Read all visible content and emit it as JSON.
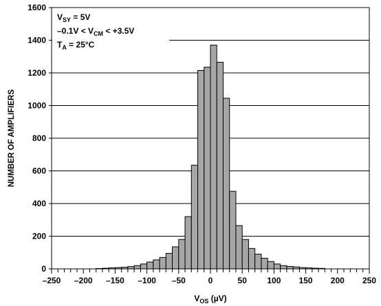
{
  "chart_data": {
    "type": "bar",
    "xlabel": "V",
    "xlabel_sub": "OS",
    "xlabel_unit": " (µV)",
    "ylabel": "NUMBER OF AMPLIFIERS",
    "xlim": [
      -250,
      250
    ],
    "ylim": [
      0,
      1600
    ],
    "x_ticks": [
      -250,
      -200,
      -150,
      -100,
      -50,
      0,
      50,
      100,
      150,
      200,
      250
    ],
    "x_tick_labels": [
      "–250",
      "–200",
      "–150",
      "–100",
      "–50",
      "0",
      "50",
      "100",
      "150",
      "200",
      "250"
    ],
    "y_ticks": [
      0,
      200,
      400,
      600,
      800,
      1000,
      1200,
      1400,
      1600
    ],
    "y_tick_labels": [
      "0",
      "200",
      "400",
      "600",
      "800",
      "1000",
      "1200",
      "1400",
      "1600"
    ],
    "grid": "horizontal",
    "bin_width": 10,
    "bins": [
      {
        "center": -175,
        "value": 2
      },
      {
        "center": -165,
        "value": 4
      },
      {
        "center": -155,
        "value": 6
      },
      {
        "center": -145,
        "value": 8
      },
      {
        "center": -135,
        "value": 10
      },
      {
        "center": -125,
        "value": 14
      },
      {
        "center": -115,
        "value": 20
      },
      {
        "center": -105,
        "value": 30
      },
      {
        "center": -95,
        "value": 42
      },
      {
        "center": -85,
        "value": 55
      },
      {
        "center": -75,
        "value": 70
      },
      {
        "center": -65,
        "value": 95
      },
      {
        "center": -55,
        "value": 135
      },
      {
        "center": -45,
        "value": 180
      },
      {
        "center": -35,
        "value": 320
      },
      {
        "center": -25,
        "value": 635
      },
      {
        "center": -15,
        "value": 1215
      },
      {
        "center": -5,
        "value": 1235
      },
      {
        "center": 5,
        "value": 1370
      },
      {
        "center": 15,
        "value": 1265
      },
      {
        "center": 25,
        "value": 1045
      },
      {
        "center": 35,
        "value": 475
      },
      {
        "center": 45,
        "value": 265
      },
      {
        "center": 55,
        "value": 180
      },
      {
        "center": 65,
        "value": 125
      },
      {
        "center": 75,
        "value": 90
      },
      {
        "center": 85,
        "value": 65
      },
      {
        "center": 95,
        "value": 45
      },
      {
        "center": 105,
        "value": 30
      },
      {
        "center": 115,
        "value": 20
      },
      {
        "center": 125,
        "value": 15
      },
      {
        "center": 135,
        "value": 12
      },
      {
        "center": 145,
        "value": 8
      },
      {
        "center": 155,
        "value": 6
      },
      {
        "center": 165,
        "value": 4
      },
      {
        "center": 175,
        "value": 3
      }
    ],
    "annotations": [
      {
        "parts": [
          {
            "t": "V",
            "sub": false
          },
          {
            "t": "SY",
            "sub": true
          },
          {
            "t": " = 5V",
            "sub": false
          }
        ]
      },
      {
        "parts": [
          {
            "t": "–0.1V < V",
            "sub": false
          },
          {
            "t": "CM",
            "sub": true
          },
          {
            "t": " < +3.5V",
            "sub": false
          }
        ]
      },
      {
        "parts": [
          {
            "t": "T",
            "sub": false
          },
          {
            "t": "A",
            "sub": true
          },
          {
            "t": " = 25°C",
            "sub": false
          }
        ]
      }
    ],
    "colors": {
      "bar_fill": "#a6a6a6",
      "bar_stroke": "#000000",
      "grid": "#000000"
    }
  }
}
